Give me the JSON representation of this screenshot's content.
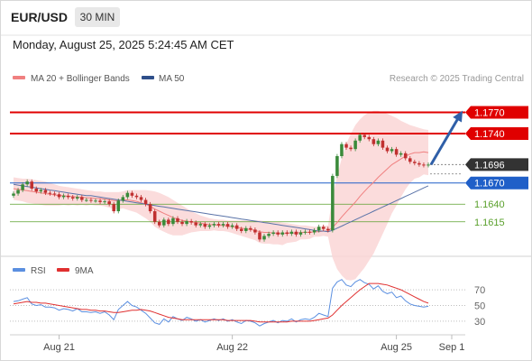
{
  "header": {
    "symbol": "EUR/USD",
    "timeframe": "30 MIN",
    "timestamp": "Monday, August 25, 2025 5:24:45 AM CET"
  },
  "legend": {
    "ma20_label": "MA 20 + Bollinger Bands",
    "ma50_label": "MA 50",
    "credit": "Research © 2025 Trading Central",
    "rsi_label": "RSI",
    "ma9_label": "9MA"
  },
  "colors": {
    "up_candle": "#3a8a3a",
    "down_candle": "#c03030",
    "resistance": "#e00000",
    "current_price": "#333333",
    "pivot": "#1f5fc8",
    "support": "#5aa02c",
    "ma20": "#f08080",
    "bollinger": "#fad6d6",
    "ma50": "#5a73a8",
    "rsi": "#5b8fe0",
    "rsi_ma": "#e03030",
    "arrow": "#2f5fa8"
  },
  "chart_data": [
    {
      "type": "candlestick",
      "x_tick_labels": [
        "Aug 21",
        "Aug 22",
        "Aug 25",
        "Sep 1"
      ],
      "ylim": [
        1.157,
        1.18
      ],
      "levels": [
        {
          "value": 1.177,
          "label": "1.1770",
          "kind": "resistance"
        },
        {
          "value": 1.174,
          "label": "1.1740",
          "kind": "resistance"
        },
        {
          "value": 1.1696,
          "label": "1.1696",
          "kind": "current"
        },
        {
          "value": 1.167,
          "label": "1.1670",
          "kind": "pivot"
        },
        {
          "value": 1.164,
          "label": "1.1640",
          "kind": "support"
        },
        {
          "value": 1.1615,
          "label": "1.1615",
          "kind": "support"
        }
      ],
      "close": [
        1.1655,
        1.166,
        1.1668,
        1.1672,
        1.1662,
        1.1658,
        1.166,
        1.1656,
        1.1655,
        1.1654,
        1.165,
        1.1652,
        1.165,
        1.1648,
        1.165,
        1.1646,
        1.1646,
        1.1645,
        1.1645,
        1.1643,
        1.1644,
        1.164,
        1.163,
        1.1645,
        1.165,
        1.1656,
        1.1652,
        1.165,
        1.1646,
        1.164,
        1.163,
        1.1615,
        1.161,
        1.1618,
        1.1612,
        1.162,
        1.1615,
        1.1612,
        1.1616,
        1.1614,
        1.161,
        1.1612,
        1.1608,
        1.161,
        1.1612,
        1.161,
        1.1612,
        1.1608,
        1.161,
        1.1605,
        1.1602,
        1.1606,
        1.1604,
        1.16,
        1.159,
        1.1595,
        1.1598,
        1.16,
        1.1597,
        1.16,
        1.1598,
        1.1601,
        1.1597,
        1.16,
        1.1601,
        1.16,
        1.1603,
        1.1608,
        1.1605,
        1.1603,
        1.168,
        1.1708,
        1.1725,
        1.172,
        1.1718,
        1.173,
        1.1738,
        1.1735,
        1.1732,
        1.1725,
        1.173,
        1.172,
        1.1715,
        1.1718,
        1.171,
        1.1712,
        1.1705,
        1.17,
        1.1698,
        1.1696,
        1.1695,
        1.1696
      ],
      "ma20": [
        1.1662,
        1.1661,
        1.166,
        1.1659,
        1.1658,
        1.1657,
        1.1656,
        1.1655,
        1.1654,
        1.1653,
        1.1652,
        1.1652,
        1.1651,
        1.1651,
        1.165,
        1.165,
        1.1649,
        1.1649,
        1.1648,
        1.1648,
        1.1647,
        1.1646,
        1.1645,
        1.1645,
        1.1646,
        1.1646,
        1.1645,
        1.1644,
        1.1642,
        1.164,
        1.1637,
        1.1633,
        1.163,
        1.1627,
        1.1624,
        1.1621,
        1.1619,
        1.1617,
        1.1616,
        1.1615,
        1.1614,
        1.1613,
        1.1612,
        1.1611,
        1.1611,
        1.161,
        1.161,
        1.1609,
        1.1608,
        1.1607,
        1.1606,
        1.1605,
        1.1604,
        1.1603,
        1.1601,
        1.16,
        1.16,
        1.1599,
        1.1599,
        1.1598,
        1.1599,
        1.1599,
        1.1599,
        1.16,
        1.16,
        1.16,
        1.1601,
        1.1601,
        1.1602,
        1.1602,
        1.1607,
        1.1614,
        1.1622,
        1.1629,
        1.1636,
        1.1643,
        1.1651,
        1.1658,
        1.1665,
        1.1671,
        1.1678,
        1.1684,
        1.169,
        1.1696,
        1.17,
        1.1704,
        1.1708,
        1.1711,
        1.1713,
        1.1713,
        1.1714,
        1.1713
      ],
      "bollinger_upper": [
        1.1678,
        1.1677,
        1.1676,
        1.1676,
        1.1675,
        1.1674,
        1.1673,
        1.1672,
        1.167,
        1.1668,
        1.1666,
        1.1665,
        1.1664,
        1.1663,
        1.1662,
        1.1661,
        1.166,
        1.1659,
        1.1658,
        1.1658,
        1.1657,
        1.1657,
        1.1657,
        1.1657,
        1.1658,
        1.166,
        1.166,
        1.166,
        1.166,
        1.166,
        1.1659,
        1.1658,
        1.1656,
        1.1653,
        1.165,
        1.1646,
        1.1642,
        1.1638,
        1.1634,
        1.163,
        1.1627,
        1.1624,
        1.1622,
        1.162,
        1.1619,
        1.1618,
        1.1618,
        1.1617,
        1.1617,
        1.1617,
        1.1617,
        1.1617,
        1.1617,
        1.1617,
        1.1617,
        1.1616,
        1.1616,
        1.1615,
        1.1615,
        1.1614,
        1.1613,
        1.1612,
        1.1611,
        1.161,
        1.161,
        1.1609,
        1.1608,
        1.1608,
        1.1609,
        1.161,
        1.165,
        1.168,
        1.1705,
        1.1725,
        1.174,
        1.1752,
        1.176,
        1.1766,
        1.177,
        1.1772,
        1.1772,
        1.177,
        1.1768,
        1.1765,
        1.1762,
        1.1758,
        1.1755,
        1.1752,
        1.175,
        1.1748,
        1.1746,
        1.1745
      ],
      "bollinger_lower": [
        1.1646,
        1.1645,
        1.1644,
        1.1642,
        1.1641,
        1.164,
        1.1639,
        1.1638,
        1.1638,
        1.1638,
        1.1638,
        1.1639,
        1.1638,
        1.1639,
        1.1638,
        1.1639,
        1.1638,
        1.1639,
        1.1638,
        1.1638,
        1.1637,
        1.1635,
        1.1633,
        1.1633,
        1.1634,
        1.1632,
        1.163,
        1.1628,
        1.1624,
        1.162,
        1.1615,
        1.1608,
        1.1604,
        1.1601,
        1.1598,
        1.1596,
        1.1596,
        1.1596,
        1.1598,
        1.16,
        1.1601,
        1.1602,
        1.1602,
        1.1602,
        1.1603,
        1.1602,
        1.1602,
        1.1601,
        1.1599,
        1.1597,
        1.1595,
        1.1593,
        1.1591,
        1.1589,
        1.1585,
        1.1584,
        1.1584,
        1.1583,
        1.1583,
        1.1582,
        1.1585,
        1.1586,
        1.1587,
        1.159,
        1.159,
        1.1591,
        1.1594,
        1.1594,
        1.1595,
        1.1594,
        1.1564,
        1.1548,
        1.1539,
        1.1533,
        1.1532,
        1.1534,
        1.1542,
        1.155,
        1.156,
        1.157,
        1.1584,
        1.1598,
        1.1612,
        1.1627,
        1.1638,
        1.165,
        1.1661,
        1.167,
        1.1676,
        1.1678,
        1.1682,
        1.1681
      ],
      "ma50": [
        1.1668,
        1.1667,
        1.1666,
        1.1665,
        1.1664,
        1.1663,
        1.1662,
        1.1661,
        1.166,
        1.1659,
        1.1658,
        1.1657,
        1.1656,
        1.1655,
        1.1654,
        1.1653,
        1.1652,
        1.1652,
        1.1651,
        1.165,
        1.1649,
        1.1648,
        1.1647,
        1.1646,
        1.1645,
        1.1644,
        1.1643,
        1.1642,
        1.1641,
        1.164,
        1.1639,
        1.1638,
        1.1637,
        1.1636,
        1.1635,
        1.1634,
        1.1633,
        1.1632,
        1.1631,
        1.163,
        1.1629,
        1.1628,
        1.1627,
        1.1626,
        1.1625,
        1.1624,
        1.1623,
        1.1622,
        1.1621,
        1.162,
        1.1619,
        1.1618,
        1.1617,
        1.1616,
        1.1615,
        1.1614,
        1.1613,
        1.1612,
        1.1611,
        1.161,
        1.1609,
        1.1608,
        1.1607,
        1.1606,
        1.1605,
        1.1604,
        1.1603,
        1.1602,
        1.1602,
        1.1601,
        1.1603,
        1.1606,
        1.1609,
        1.1612,
        1.1615,
        1.1618,
        1.1621,
        1.1624,
        1.1627,
        1.163,
        1.1633,
        1.1636,
        1.1639,
        1.1642,
        1.1645,
        1.1648,
        1.1651,
        1.1654,
        1.1657,
        1.166,
        1.1663,
        1.1666
      ]
    },
    {
      "type": "line",
      "title": "RSI",
      "y_ticks": [
        70,
        50,
        30
      ],
      "ylim": [
        15,
        85
      ],
      "series": [
        {
          "name": "RSI",
          "values": [
            55,
            56,
            58,
            60,
            52,
            50,
            51,
            48,
            48,
            47,
            44,
            46,
            45,
            43,
            46,
            42,
            42,
            41,
            42,
            40,
            42,
            38,
            32,
            45,
            50,
            55,
            50,
            48,
            44,
            40,
            34,
            28,
            26,
            33,
            29,
            36,
            33,
            31,
            35,
            33,
            30,
            32,
            29,
            31,
            33,
            31,
            33,
            30,
            32,
            29,
            27,
            31,
            30,
            28,
            24,
            27,
            29,
            31,
            28,
            31,
            30,
            33,
            29,
            32,
            33,
            32,
            35,
            40,
            38,
            36,
            72,
            80,
            83,
            76,
            74,
            80,
            83,
            79,
            77,
            71,
            75,
            68,
            65,
            67,
            60,
            62,
            56,
            52,
            50,
            49,
            48,
            49
          ]
        },
        {
          "name": "9MA",
          "values": [
            52,
            53,
            54,
            55,
            54,
            54,
            53,
            53,
            52,
            51,
            50,
            49,
            48,
            47,
            46,
            45,
            45,
            44,
            44,
            43,
            43,
            42,
            41,
            41,
            42,
            43,
            44,
            44,
            45,
            44,
            43,
            41,
            39,
            37,
            35,
            34,
            33,
            32,
            32,
            32,
            32,
            32,
            32,
            32,
            32,
            32,
            32,
            31,
            31,
            31,
            31,
            31,
            31,
            30,
            29,
            29,
            29,
            29,
            29,
            29,
            29,
            30,
            30,
            30,
            30,
            30,
            31,
            32,
            33,
            34,
            38,
            44,
            50,
            55,
            60,
            65,
            70,
            74,
            78,
            78,
            78,
            77,
            76,
            74,
            72,
            70,
            67,
            64,
            61,
            58,
            55,
            53
          ]
        }
      ]
    }
  ]
}
